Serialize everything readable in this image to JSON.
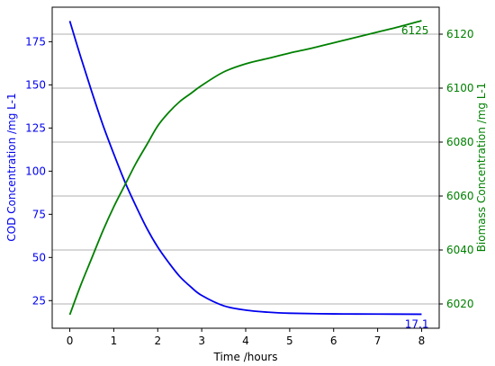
{
  "chart_data": {
    "type": "line",
    "title": "",
    "xlabel": "Time /hours",
    "ylabel_left": "COD Concentration /mg L-1",
    "ylabel_right": "Biomass Concentration /mg L-1",
    "xlim": [
      -0.4,
      8.4
    ],
    "ylim_left": [
      9,
      195
    ],
    "ylim_right": [
      6011,
      6130
    ],
    "xticks": [
      0,
      1,
      2,
      3,
      4,
      5,
      6,
      7,
      8
    ],
    "yticks_left": [
      25,
      50,
      75,
      100,
      125,
      150,
      175
    ],
    "yticks_right": [
      6020,
      6040,
      6060,
      6080,
      6100,
      6120
    ],
    "grid": "horizontal",
    "colors": {
      "cod": "#0000ee",
      "biomass": "#008000"
    },
    "series": [
      {
        "axis": "left",
        "x": [
          0,
          0.25,
          0.5,
          0.75,
          1,
          1.25,
          1.5,
          1.75,
          2,
          2.25,
          2.5,
          2.75,
          3,
          3.5,
          4,
          4.5,
          5,
          6,
          7,
          8
        ],
        "values": [
          187,
          166,
          146,
          127,
          110,
          94,
          80,
          67,
          56,
          47,
          39,
          33,
          28,
          22,
          19.5,
          18.3,
          17.7,
          17.3,
          17.2,
          17.1
        ]
      },
      {
        "axis": "right",
        "x": [
          0,
          0.25,
          0.5,
          0.75,
          1,
          1.25,
          1.5,
          1.75,
          2,
          2.25,
          2.5,
          2.75,
          3,
          3.5,
          4,
          4.5,
          5,
          5.5,
          6,
          6.5,
          7,
          7.5,
          8
        ],
        "values": [
          6016,
          6027,
          6037,
          6047,
          6056,
          6064,
          6072,
          6079,
          6086,
          6091,
          6095,
          6098,
          6101,
          6106,
          6109,
          6111,
          6113,
          6114.8,
          6116.8,
          6118.8,
          6120.8,
          6122.8,
          6125
        ]
      }
    ],
    "annotations": [
      {
        "text": "6125",
        "x": 8,
        "y": 6125,
        "axis": "right"
      },
      {
        "text": "17.1",
        "x": 8,
        "y": 17.1,
        "axis": "left"
      }
    ]
  }
}
